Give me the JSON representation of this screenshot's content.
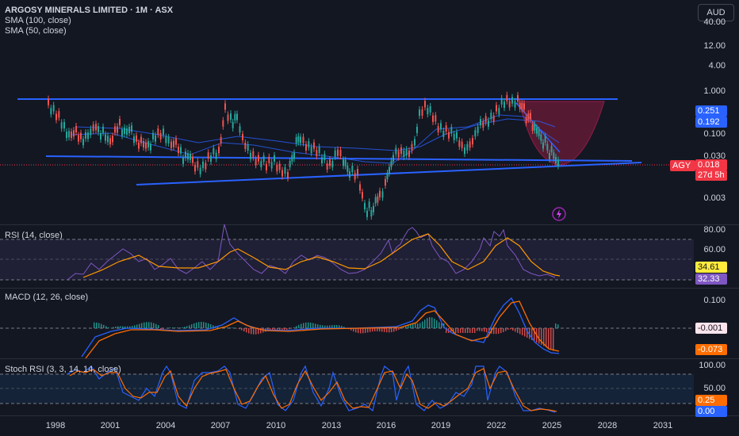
{
  "header": {
    "title": "ARGOSY MINERALS LIMITED · 1M · ASX",
    "indicators": [
      "SMA (100, close)",
      "SMA (50, close)"
    ]
  },
  "currency_button": "AUD",
  "price_axis": {
    "ticks": [
      "40.00",
      "12.00",
      "4.00",
      "1.000",
      "0.100",
      "0.030",
      "0.003"
    ],
    "tags": [
      {
        "label": "0.251",
        "color": "#2962ff"
      },
      {
        "label": "0.192",
        "color": "#2962ff"
      }
    ],
    "symbol_tag": "AGY",
    "last_price": "0.018",
    "countdown": "27d 5h",
    "symbol_color": "#f23645"
  },
  "rsi": {
    "label": "RSI (14, close)",
    "ticks": [
      "80.00",
      "60.00"
    ],
    "tag_ma": "34.61",
    "tag_rsi": "32.33"
  },
  "macd": {
    "label": "MACD (12, 26, close)",
    "ticks": [
      "0.100"
    ],
    "tag_hist": "-0.001",
    "tag_signal": "-0.073"
  },
  "stoch": {
    "label": "Stoch RSI (3, 3, 14, 14, close)",
    "ticks": [
      "100.00",
      "50.00"
    ],
    "tag_d": "0.25",
    "tag_k": "0.00"
  },
  "time_axis": [
    "1998",
    "2001",
    "2004",
    "2007",
    "2010",
    "2013",
    "2016",
    "2019",
    "2022",
    "2025",
    "2028",
    "2031"
  ],
  "colors": {
    "up": "#26a69a",
    "down": "#ef5350",
    "trendline": "#2962ff",
    "cup": "#e91e63",
    "rsi": "#7e57c2",
    "rsi_ma": "#ff9800"
  }
}
